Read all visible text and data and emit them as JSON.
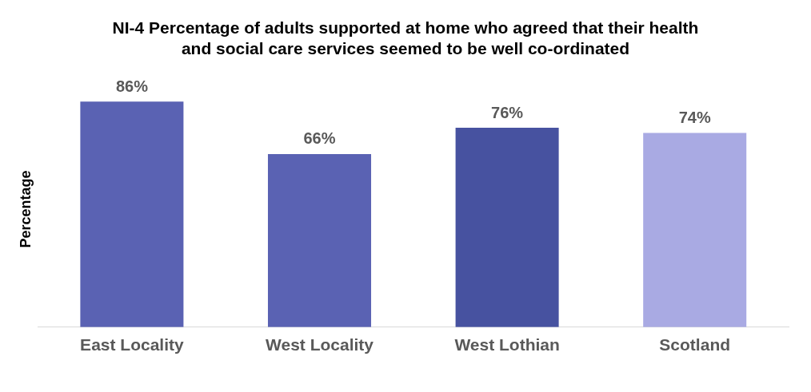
{
  "chart_data": {
    "type": "bar",
    "title": "NI-4 Percentage of adults supported at home who agreed that their health and social care services seemed to be well co-ordinated",
    "ylabel": "Percentage",
    "categories": [
      "East Locality",
      "West Locality",
      "West Lothian",
      "Scotland"
    ],
    "values": [
      86,
      66,
      76,
      74
    ],
    "colors": [
      "#5a62b3",
      "#5a62b3",
      "#4752a0",
      "#a9aae3"
    ],
    "value_labels": [
      "86%",
      "66%",
      "76%",
      "74%"
    ],
    "relative": false,
    "grid": false,
    "legend": false
  }
}
